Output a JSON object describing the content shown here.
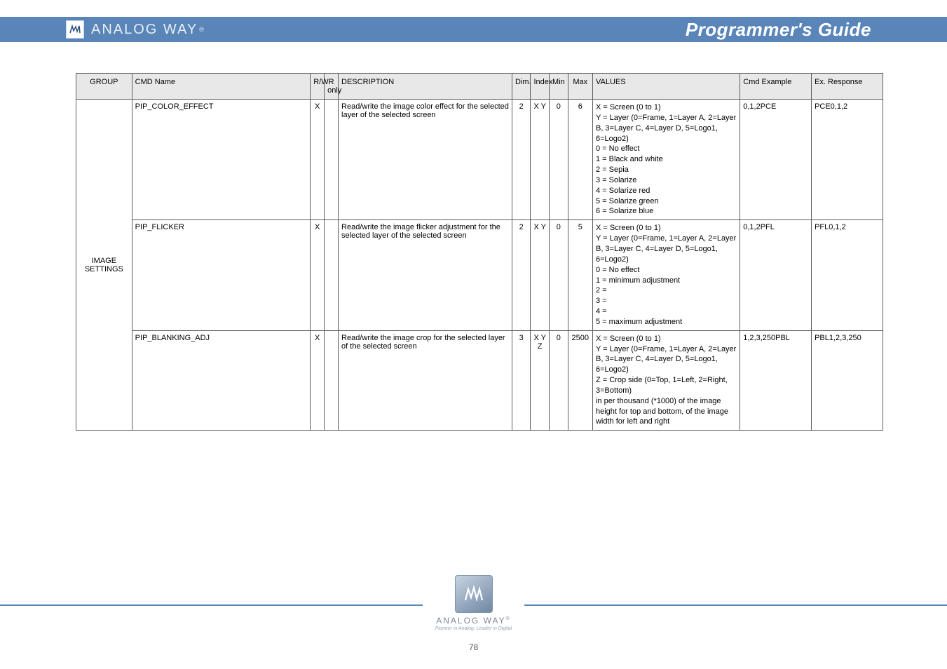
{
  "colors": {
    "header_band": "#5985b8",
    "header_text": "#ffffff",
    "brand_text": "#e8eef6",
    "table_border": "#5c5c5c",
    "table_header_bg": "#e8e8e8",
    "footer_rule": "#5985b8",
    "footer_text": "#7c8896"
  },
  "brand": {
    "name": "ANALOG WAY",
    "reg": "®"
  },
  "title": "Programmer's Guide",
  "columns": [
    "GROUP",
    "CMD Name",
    "R/W",
    "R only",
    "DESCRIPTION",
    "Dim.",
    "Index",
    "Min",
    "Max",
    "VALUES",
    "Cmd Example",
    "Ex. Response"
  ],
  "group": "IMAGE SETTINGS",
  "rows": [
    {
      "cmd": "PIP_COLOR_EFFECT",
      "rw": "X",
      "ro": "",
      "desc": "Read/write the image color effect for the selected layer of the selected screen",
      "dim": "2",
      "index": "X Y",
      "min": "0",
      "max": "6",
      "values": [
        "X = Screen (0 to 1)",
        "Y = Layer (0=Frame, 1=Layer A, 2=Layer B, 3=Layer C, 4=Layer D, 5=Logo1, 6=Logo2)",
        "0 = No effect",
        "1 = Black and white",
        "2 = Sepia",
        "3 = Solarize",
        "4 = Solarize red",
        "5 = Solarize green",
        "6 = Solarize blue"
      ],
      "ex": "0,1,2PCE",
      "resp": "PCE0,1,2"
    },
    {
      "cmd": "PIP_FLICKER",
      "rw": "X",
      "ro": "",
      "desc": "Read/write the image flicker adjustment for the selected layer of the selected screen",
      "dim": "2",
      "index": "X Y",
      "min": "0",
      "max": "5",
      "values": [
        "X = Screen (0 to 1)",
        "Y = Layer (0=Frame, 1=Layer A, 2=Layer B, 3=Layer C, 4=Layer D, 5=Logo1, 6=Logo2)",
        "0 = No effect",
        "1 = minimum adjustment",
        "2 =",
        "3 =",
        "4 =",
        "5 = maximum adjustment"
      ],
      "ex": "0,1,2PFL",
      "resp": "PFL0,1,2"
    },
    {
      "cmd": "PIP_BLANKING_ADJ",
      "rw": "X",
      "ro": "",
      "desc": "Read/write the image crop for the selected layer of the selected screen",
      "dim": "3",
      "index": "X Y Z",
      "min": "0",
      "max": "2500",
      "values": [
        "X = Screen (0 to 1)",
        "Y = Layer (0=Frame, 1=Layer A, 2=Layer B, 3=Layer C, 4=Layer D, 5=Logo1, 6=Logo2)",
        "Z = Crop side (0=Top, 1=Left, 2=Right, 3=Bottom)",
        "in per thousand (*1000) of the image height for top and bottom, of the image width for left and right"
      ],
      "ex": "1,2,3,250PBL",
      "resp": "PBL1,2,3,250"
    }
  ],
  "footer": {
    "wordmark": "ANALOG WAY",
    "reg": "®",
    "tagline": "Pioneer in Analog, Leader in Digital",
    "page_current": "78",
    "page_total": "",
    "page_label": "78"
  }
}
